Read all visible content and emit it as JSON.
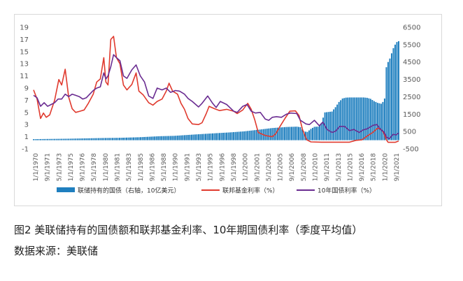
{
  "chart_data": {
    "type": "bar+line",
    "title": "",
    "caption": "图2 美联储持有的国债额和联邦基金利率、10年期国债利率（季度平均值）",
    "source": "数据来源：美联储",
    "left_axis": {
      "min": -1,
      "max": 19,
      "ticks": [
        -1,
        1,
        3,
        5,
        7,
        9,
        11,
        13,
        15,
        17,
        19
      ]
    },
    "right_axis": {
      "min": -500,
      "max": 6500,
      "ticks": [
        -500,
        500,
        1500,
        2500,
        3500,
        4500,
        5500,
        6500
      ]
    },
    "x_tick_labels": [
      "1/1/1970",
      "9/1/1971",
      "5/1/1973",
      "1/1/1975",
      "9/1/1976",
      "5/1/1978",
      "1/1/1980",
      "9/1/1981",
      "5/1/1983",
      "1/1/1985",
      "9/1/1986",
      "5/1/1988",
      "1/1/1990",
      "9/1/1991",
      "5/1/1993",
      "1/1/1995",
      "9/1/1996",
      "5/1/1998",
      "1/1/2000",
      "9/1/2001",
      "5/1/2003",
      "1/1/2005",
      "9/1/2006",
      "5/1/2008",
      "1/1/2010",
      "9/1/2011",
      "5/1/2013",
      "1/1/2015",
      "9/1/2016",
      "5/1/2018",
      "1/1/2020",
      "9/1/2021"
    ],
    "x_range": [
      1970.0,
      2022.0
    ],
    "legend_position": "bottom",
    "grid": false,
    "series": [
      {
        "name": "联储持有的国债（右轴，10亿美元）",
        "kind": "bar",
        "axis": "right",
        "color": "#1f7fbf",
        "points": [
          [
            1970,
            60
          ],
          [
            1972,
            70
          ],
          [
            1975,
            85
          ],
          [
            1978,
            110
          ],
          [
            1980,
            125
          ],
          [
            1982,
            135
          ],
          [
            1985,
            170
          ],
          [
            1988,
            230
          ],
          [
            1990,
            250
          ],
          [
            1993,
            330
          ],
          [
            1995,
            380
          ],
          [
            1998,
            450
          ],
          [
            2000,
            510
          ],
          [
            2002,
            600
          ],
          [
            2004,
            700
          ],
          [
            2006,
            760
          ],
          [
            2007.5,
            780
          ],
          [
            2008.0,
            750
          ],
          [
            2008.5,
            500
          ],
          [
            2009.0,
            480
          ],
          [
            2009.5,
            650
          ],
          [
            2010.0,
            770
          ],
          [
            2010.5,
            780
          ],
          [
            2011.0,
            1000
          ],
          [
            2011.5,
            1600
          ],
          [
            2012.5,
            1650
          ],
          [
            2013.0,
            1900
          ],
          [
            2013.5,
            2200
          ],
          [
            2014.0,
            2400
          ],
          [
            2014.5,
            2450
          ],
          [
            2015,
            2460
          ],
          [
            2016,
            2460
          ],
          [
            2017,
            2460
          ],
          [
            2017.5,
            2440
          ],
          [
            2018,
            2380
          ],
          [
            2018.5,
            2250
          ],
          [
            2019,
            2150
          ],
          [
            2019.5,
            2100
          ],
          [
            2019.75,
            2200
          ],
          [
            2020.0,
            2400
          ],
          [
            2020.25,
            4200
          ],
          [
            2020.5,
            4500
          ],
          [
            2020.75,
            4700
          ],
          [
            2021.0,
            5000
          ],
          [
            2021.25,
            5300
          ],
          [
            2021.5,
            5500
          ],
          [
            2021.75,
            5650
          ],
          [
            2022.0,
            5700
          ]
        ]
      },
      {
        "name": "联邦基金利率（%）",
        "kind": "line",
        "axis": "left",
        "color": "#e03a2e",
        "points": [
          [
            1970.0,
            8.7
          ],
          [
            1970.5,
            7.2
          ],
          [
            1971.0,
            4.0
          ],
          [
            1971.4,
            4.9
          ],
          [
            1971.8,
            4.2
          ],
          [
            1972.3,
            4.6
          ],
          [
            1973.0,
            7.0
          ],
          [
            1973.6,
            10.4
          ],
          [
            1974.0,
            9.5
          ],
          [
            1974.5,
            12.1
          ],
          [
            1975.0,
            7.5
          ],
          [
            1975.5,
            5.6
          ],
          [
            1976.0,
            5.0
          ],
          [
            1976.6,
            5.2
          ],
          [
            1977.2,
            5.4
          ],
          [
            1977.8,
            6.5
          ],
          [
            1978.5,
            8.0
          ],
          [
            1979.0,
            10.0
          ],
          [
            1979.5,
            10.5
          ],
          [
            1980.0,
            14.0
          ],
          [
            1980.3,
            10.0
          ],
          [
            1980.6,
            9.5
          ],
          [
            1981.0,
            17.0
          ],
          [
            1981.4,
            17.5
          ],
          [
            1981.8,
            14.0
          ],
          [
            1982.3,
            13.0
          ],
          [
            1982.8,
            9.5
          ],
          [
            1983.3,
            8.7
          ],
          [
            1984.0,
            9.6
          ],
          [
            1984.6,
            11.5
          ],
          [
            1985.0,
            8.5
          ],
          [
            1985.6,
            7.9
          ],
          [
            1986.4,
            6.6
          ],
          [
            1987.0,
            6.2
          ],
          [
            1987.6,
            6.8
          ],
          [
            1988.3,
            7.2
          ],
          [
            1988.9,
            8.5
          ],
          [
            1989.3,
            9.8
          ],
          [
            1989.8,
            8.5
          ],
          [
            1990.5,
            8.0
          ],
          [
            1991.0,
            6.5
          ],
          [
            1991.5,
            5.5
          ],
          [
            1992.0,
            4.0
          ],
          [
            1992.6,
            3.1
          ],
          [
            1993.5,
            3.0
          ],
          [
            1994.0,
            3.3
          ],
          [
            1994.6,
            4.8
          ],
          [
            1995.0,
            6.0
          ],
          [
            1995.8,
            5.6
          ],
          [
            1996.5,
            5.3
          ],
          [
            1997.5,
            5.5
          ],
          [
            1998.5,
            5.2
          ],
          [
            1999.0,
            4.8
          ],
          [
            1999.8,
            5.4
          ],
          [
            2000.5,
            6.5
          ],
          [
            2001.0,
            5.5
          ],
          [
            2001.5,
            3.8
          ],
          [
            2002.0,
            1.7
          ],
          [
            2003.0,
            1.2
          ],
          [
            2004.0,
            1.0
          ],
          [
            2004.5,
            1.5
          ],
          [
            2005.0,
            2.5
          ],
          [
            2005.8,
            4.0
          ],
          [
            2006.5,
            5.2
          ],
          [
            2007.3,
            5.25
          ],
          [
            2007.8,
            4.5
          ],
          [
            2008.3,
            2.2
          ],
          [
            2008.9,
            0.5
          ],
          [
            2009.5,
            0.15
          ],
          [
            2011,
            0.1
          ],
          [
            2013,
            0.1
          ],
          [
            2015.0,
            0.1
          ],
          [
            2015.9,
            0.4
          ],
          [
            2016.8,
            0.5
          ],
          [
            2017.5,
            1.1
          ],
          [
            2018.3,
            1.7
          ],
          [
            2019.0,
            2.4
          ],
          [
            2019.5,
            2.2
          ],
          [
            2019.9,
            1.6
          ],
          [
            2020.2,
            0.6
          ],
          [
            2020.5,
            0.08
          ],
          [
            2021.5,
            0.08
          ],
          [
            2022.0,
            0.3
          ]
        ]
      },
      {
        "name": "10年国债利率（%）",
        "kind": "line",
        "axis": "left",
        "color": "#6a2c91",
        "points": [
          [
            1970.0,
            7.8
          ],
          [
            1970.5,
            7.4
          ],
          [
            1971.0,
            6.0
          ],
          [
            1971.5,
            6.6
          ],
          [
            1972.0,
            6.0
          ],
          [
            1972.5,
            6.3
          ],
          [
            1973.0,
            6.6
          ],
          [
            1973.5,
            7.2
          ],
          [
            1974.0,
            7.2
          ],
          [
            1974.5,
            8.0
          ],
          [
            1975.0,
            7.6
          ],
          [
            1975.5,
            8.0
          ],
          [
            1976.0,
            7.8
          ],
          [
            1976.5,
            7.6
          ],
          [
            1977.0,
            7.2
          ],
          [
            1977.5,
            7.4
          ],
          [
            1978.0,
            8.0
          ],
          [
            1978.5,
            8.6
          ],
          [
            1979.0,
            9.0
          ],
          [
            1979.5,
            9.2
          ],
          [
            1980.0,
            11.5
          ],
          [
            1980.3,
            10.5
          ],
          [
            1980.6,
            11.0
          ],
          [
            1981.0,
            12.5
          ],
          [
            1981.4,
            14.5
          ],
          [
            1981.8,
            14.0
          ],
          [
            1982.3,
            13.5
          ],
          [
            1982.8,
            11.0
          ],
          [
            1983.3,
            10.6
          ],
          [
            1984.0,
            12.0
          ],
          [
            1984.6,
            12.8
          ],
          [
            1985.2,
            11.0
          ],
          [
            1985.8,
            10.0
          ],
          [
            1986.4,
            7.7
          ],
          [
            1987.0,
            7.3
          ],
          [
            1987.6,
            9.0
          ],
          [
            1988.3,
            8.7
          ],
          [
            1988.9,
            9.0
          ],
          [
            1989.5,
            8.3
          ],
          [
            1990.2,
            8.6
          ],
          [
            1990.8,
            8.5
          ],
          [
            1991.5,
            8.0
          ],
          [
            1992.0,
            7.3
          ],
          [
            1992.6,
            6.8
          ],
          [
            1993.5,
            5.9
          ],
          [
            1994.0,
            6.5
          ],
          [
            1994.8,
            7.7
          ],
          [
            1995.5,
            6.5
          ],
          [
            1996.0,
            5.8
          ],
          [
            1996.6,
            6.8
          ],
          [
            1997.5,
            6.3
          ],
          [
            1998.5,
            5.2
          ],
          [
            1999.0,
            5.0
          ],
          [
            1999.8,
            6.0
          ],
          [
            2000.4,
            6.3
          ],
          [
            2001.0,
            5.2
          ],
          [
            2001.6,
            4.9
          ],
          [
            2002.3,
            5.0
          ],
          [
            2003.0,
            3.9
          ],
          [
            2003.5,
            3.7
          ],
          [
            2004.0,
            4.2
          ],
          [
            2004.6,
            4.3
          ],
          [
            2005.3,
            4.2
          ],
          [
            2006.0,
            4.7
          ],
          [
            2006.6,
            4.9
          ],
          [
            2007.5,
            4.8
          ],
          [
            2008.0,
            3.7
          ],
          [
            2008.8,
            3.1
          ],
          [
            2009.3,
            3.0
          ],
          [
            2010.0,
            3.7
          ],
          [
            2010.7,
            2.8
          ],
          [
            2011.2,
            3.4
          ],
          [
            2011.8,
            2.2
          ],
          [
            2012.5,
            1.7
          ],
          [
            2013.0,
            1.9
          ],
          [
            2013.6,
            2.7
          ],
          [
            2014.3,
            2.7
          ],
          [
            2015.0,
            2.0
          ],
          [
            2015.6,
            2.2
          ],
          [
            2016.4,
            1.7
          ],
          [
            2016.9,
            2.1
          ],
          [
            2017.5,
            2.3
          ],
          [
            2018.4,
            2.9
          ],
          [
            2018.9,
            3.0
          ],
          [
            2019.5,
            2.1
          ],
          [
            2019.9,
            1.8
          ],
          [
            2020.3,
            0.9
          ],
          [
            2020.7,
            0.7
          ],
          [
            2021.2,
            1.4
          ],
          [
            2021.6,
            1.3
          ],
          [
            2022.0,
            1.6
          ]
        ]
      }
    ]
  }
}
